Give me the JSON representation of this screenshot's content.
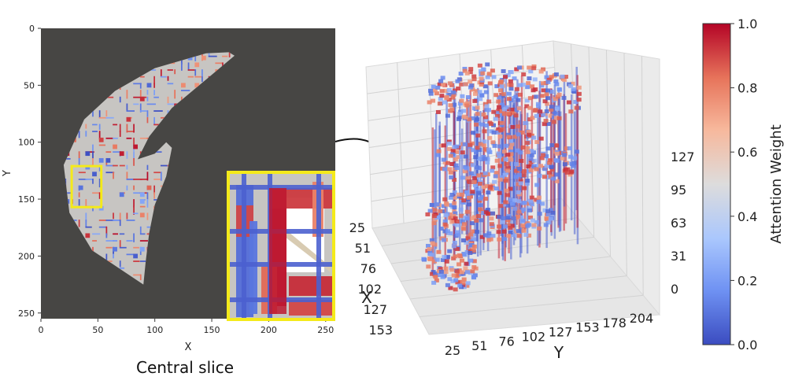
{
  "colors": {
    "background": "#ffffff",
    "slice_background": "#474644",
    "tissue": "#c7c5c2",
    "zoom_border": "#f4ea1a",
    "cmap": [
      "#3b4cc0",
      "#6f92f3",
      "#aac7fd",
      "#dddcdc",
      "#f7b89c",
      "#e7745b",
      "#b40426"
    ]
  },
  "connector": "curved-line-from-zoom-box-to-3d-volume",
  "chart_data": [
    {
      "type": "heatmap",
      "title": "",
      "caption": "Central slice",
      "xlabel": "X",
      "ylabel": "Y",
      "xlim": [
        0,
        255
      ],
      "ylim": [
        255,
        0
      ],
      "xticks": [
        "0",
        "50",
        "100",
        "150",
        "200",
        "250"
      ],
      "yticks": [
        "0",
        "50",
        "100",
        "150",
        "200",
        "250"
      ],
      "grid": false,
      "description_free_note": "",
      "zoom_box": {
        "x": [
          27,
          53
        ],
        "y": [
          121,
          157
        ],
        "border_color": "#f4ea1a"
      }
    },
    {
      "type": "scatter",
      "subtype": "3d-voxel",
      "title": "",
      "xlabel": "X",
      "ylabel": "Y",
      "zlabel": "",
      "xticks": [
        "25",
        "51",
        "76",
        "102",
        "127",
        "153"
      ],
      "yticks": [
        "25",
        "51",
        "76",
        "102",
        "127",
        "153",
        "178",
        "204"
      ],
      "zticks": [
        "0",
        "31",
        "63",
        "95",
        "127"
      ],
      "grid": true
    }
  ],
  "colorbar": {
    "label": "Attention Weight",
    "ticks": [
      "0.0",
      "0.2",
      "0.4",
      "0.6",
      "0.8",
      "1.0"
    ],
    "range": [
      0.0,
      1.0
    ],
    "colormap": "coolwarm"
  }
}
